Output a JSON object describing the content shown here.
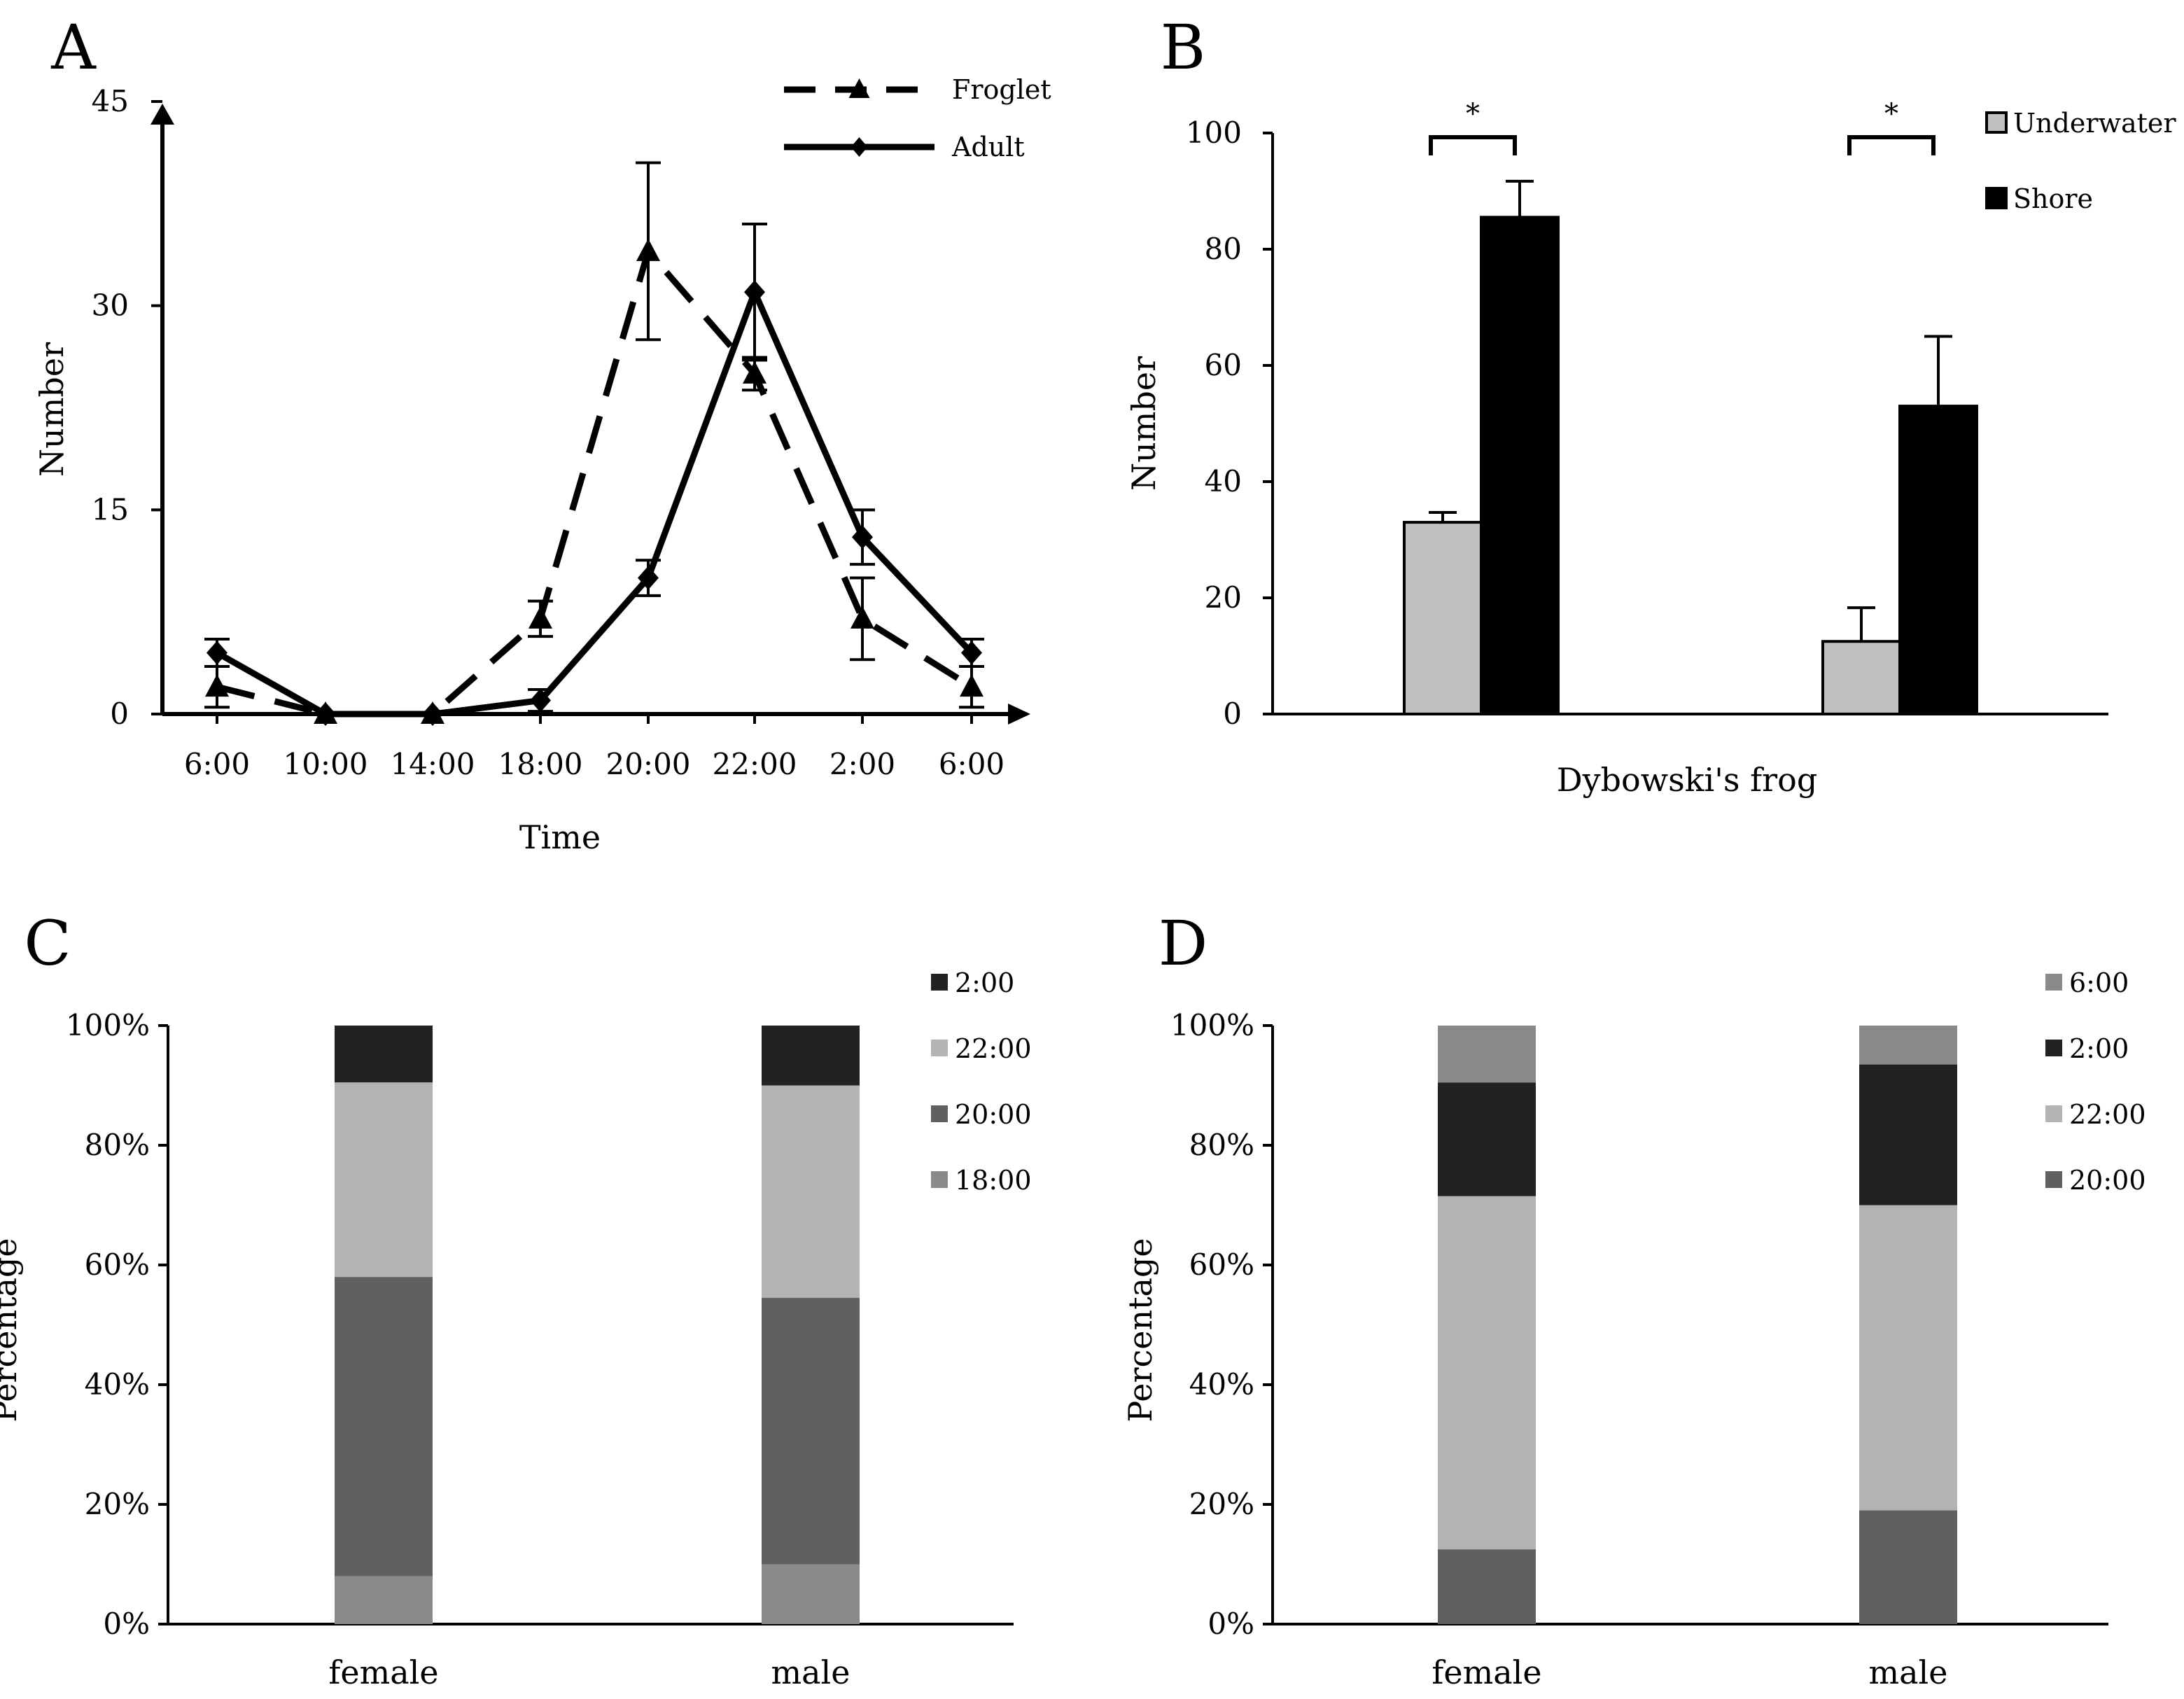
{
  "chart_data": [
    {
      "panel": "A",
      "type": "line",
      "xlabel": "Time",
      "ylabel": "Number",
      "categories": [
        "6:00",
        "10:00",
        "14:00",
        "18:00",
        "20:00",
        "22:00",
        "2:00",
        "6:00"
      ],
      "ylim": [
        0,
        45
      ],
      "yticks": [
        0,
        15,
        30,
        45
      ],
      "legend_position": "top-right",
      "series": [
        {
          "name": "Froglet",
          "style": "dashed",
          "marker": "triangle",
          "values": [
            2,
            0,
            0,
            7,
            34,
            25,
            7,
            2
          ],
          "errors": [
            1.5,
            0,
            0,
            1.3,
            6.5,
            1.2,
            3,
            1.5
          ]
        },
        {
          "name": "Adult",
          "style": "solid",
          "marker": "diamond",
          "values": [
            4.5,
            0,
            0,
            1,
            10,
            31,
            13,
            4.5
          ],
          "errors": [
            1,
            0,
            0,
            0.8,
            1.3,
            5,
            2,
            1
          ]
        }
      ]
    },
    {
      "panel": "B",
      "type": "bar",
      "xlabel": "Dybowski's frog",
      "ylabel": "Number",
      "ylim": [
        0,
        100
      ],
      "yticks": [
        0,
        20,
        40,
        60,
        80,
        100
      ],
      "legend_position": "top-right",
      "groups": 2,
      "significance": [
        "*",
        "*"
      ],
      "series": [
        {
          "name": "Underwater",
          "color": "#c0c0c0",
          "values": [
            33,
            12.5
          ],
          "errors": [
            1.7,
            5.8
          ]
        },
        {
          "name": "Shore",
          "color": "#000000",
          "values": [
            85.5,
            53
          ],
          "errors": [
            6.2,
            12
          ]
        }
      ]
    },
    {
      "panel": "C",
      "type": "bar",
      "stacked": true,
      "ylabel": "Percentage",
      "categories": [
        "female",
        "male"
      ],
      "ylim": [
        0,
        100
      ],
      "yticks": [
        "0%",
        "20%",
        "40%",
        "60%",
        "80%",
        "100%"
      ],
      "legend_position": "right",
      "series": [
        {
          "name": "18:00",
          "color": "#8a8a8a",
          "values": [
            8,
            10
          ]
        },
        {
          "name": "20:00",
          "color": "#606060",
          "values": [
            50,
            44.5
          ]
        },
        {
          "name": "22:00",
          "color": "#b3b3b3",
          "values": [
            32.5,
            35.5
          ]
        },
        {
          "name": "2:00",
          "color": "#222222",
          "values": [
            9.5,
            10
          ]
        }
      ]
    },
    {
      "panel": "D",
      "type": "bar",
      "stacked": true,
      "ylabel": "Percentage",
      "categories": [
        "female",
        "male"
      ],
      "ylim": [
        0,
        100
      ],
      "yticks": [
        "0%",
        "20%",
        "40%",
        "60%",
        "80%",
        "100%"
      ],
      "legend_position": "right",
      "series": [
        {
          "name": "20:00",
          "color": "#606060",
          "values": [
            12.5,
            19
          ]
        },
        {
          "name": "22:00",
          "color": "#b3b3b3",
          "values": [
            59,
            51
          ]
        },
        {
          "name": "2:00",
          "color": "#222222",
          "values": [
            19,
            23.5
          ]
        },
        {
          "name": "6:00",
          "color": "#8a8a8a",
          "values": [
            9.5,
            6.5
          ]
        }
      ]
    }
  ]
}
